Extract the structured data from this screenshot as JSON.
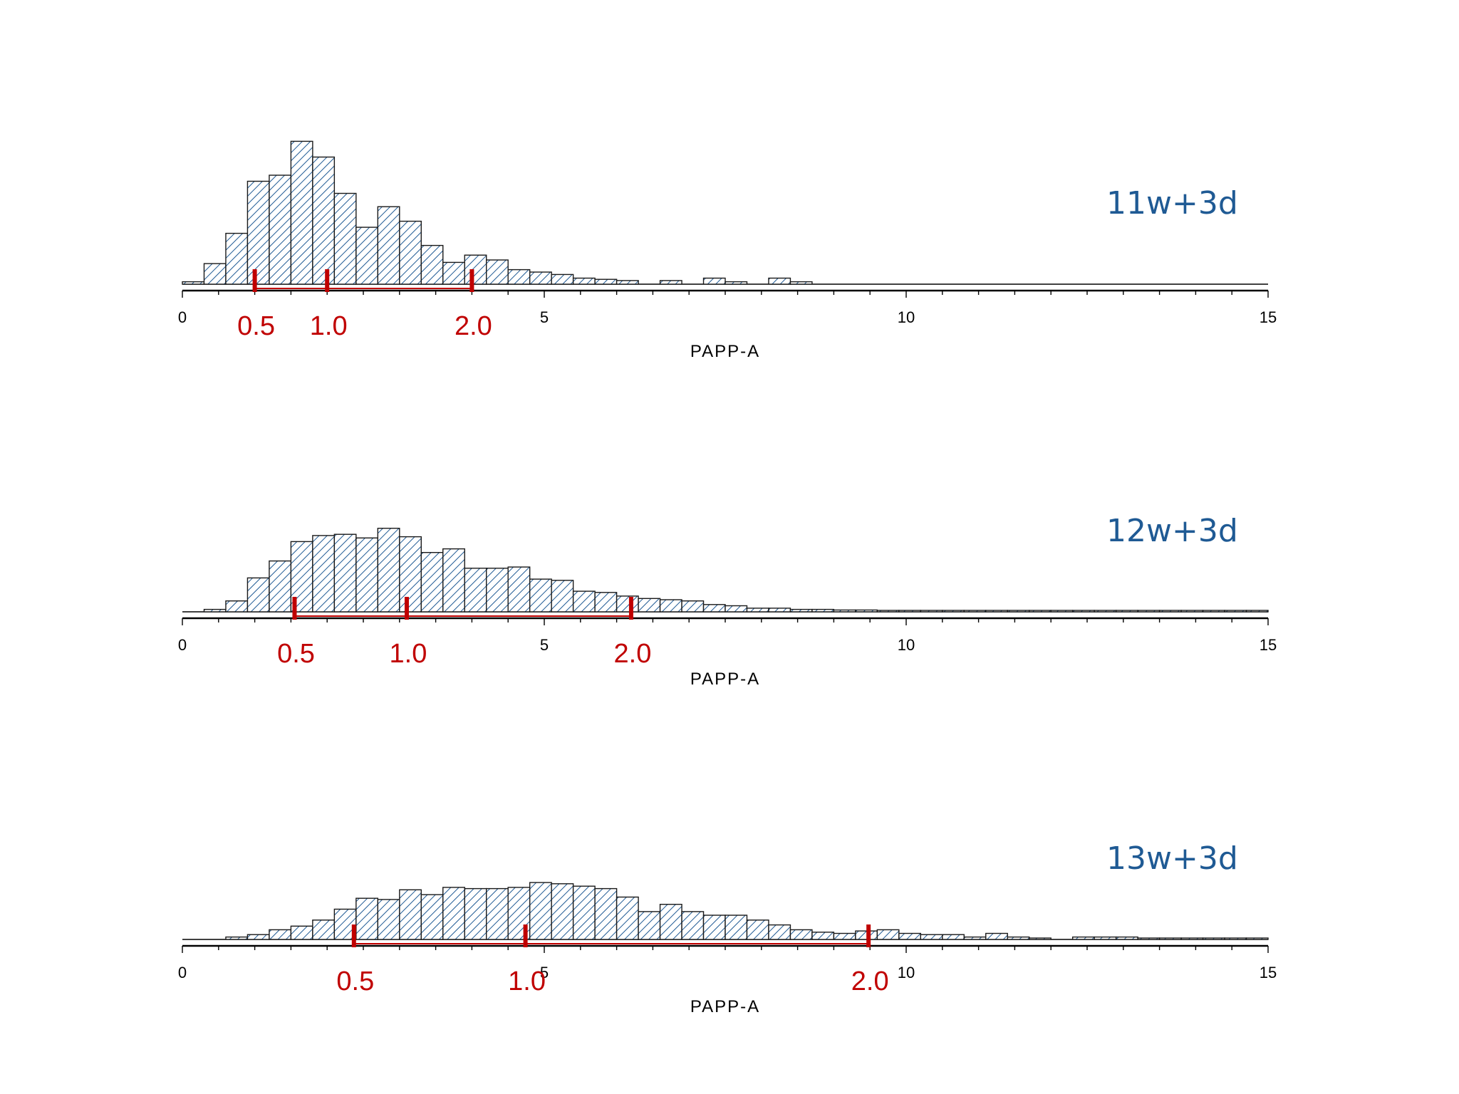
{
  "colors": {
    "bar_hatch": "#1f5a94",
    "marker": "#c00000",
    "panel_title": "#1f5a94",
    "axis": "#000000"
  },
  "chart_data": [
    {
      "type": "bar",
      "title": "11w+3d",
      "xlabel": "PAPP-A",
      "xlim": [
        0,
        15
      ],
      "x_ticks": [
        0,
        5,
        10,
        15
      ],
      "bin_width": 0.3,
      "bin_starts": [
        0,
        0.3,
        0.6,
        0.9,
        1.2,
        1.5,
        1.8,
        2.1,
        2.4,
        2.7,
        3.0,
        3.3,
        3.6,
        3.9,
        4.2,
        4.5,
        4.8,
        5.1,
        5.4,
        5.7,
        6.0,
        6.3,
        6.6,
        6.9,
        7.2,
        7.5,
        7.8,
        8.1,
        8.4
      ],
      "values": [
        2,
        17,
        42,
        85,
        90,
        118,
        105,
        75,
        47,
        64,
        52,
        32,
        18,
        24,
        20,
        12,
        10,
        8,
        5,
        4,
        3,
        0,
        3,
        0,
        5,
        2,
        0,
        5,
        2
      ],
      "markers": [
        {
          "x": 1.0,
          "label": "0.5"
        },
        {
          "x": 2.0,
          "label": "1.0"
        },
        {
          "x": 4.0,
          "label": "2.0"
        }
      ]
    },
    {
      "type": "bar",
      "title": "12w+3d",
      "xlabel": "PAPP-A",
      "xlim": [
        0,
        15
      ],
      "x_ticks": [
        0,
        5,
        10,
        15
      ],
      "bin_width": 0.3,
      "bin_starts": [
        0,
        0.3,
        0.6,
        0.9,
        1.2,
        1.5,
        1.8,
        2.1,
        2.4,
        2.7,
        3.0,
        3.3,
        3.6,
        3.9,
        4.2,
        4.5,
        4.8,
        5.1,
        5.4,
        5.7,
        6.0,
        6.3,
        6.6,
        6.9,
        7.2,
        7.5,
        7.8,
        8.1,
        8.4,
        8.7,
        9.0,
        9.3,
        9.6,
        9.9,
        10.2,
        10.5,
        10.8,
        11.1,
        11.4,
        11.7,
        12.0,
        12.3,
        12.6,
        12.9,
        13.2,
        13.5,
        13.8,
        14.1,
        14.4,
        14.7
      ],
      "values": [
        0,
        2,
        9,
        28,
        42,
        58,
        63,
        64,
        61,
        69,
        62,
        49,
        52,
        36,
        36,
        37,
        27,
        26,
        17,
        16,
        13,
        11,
        10,
        9,
        6,
        5,
        3,
        3,
        2,
        2,
        1.5,
        1.5,
        1,
        1,
        0.5,
        0.5,
        1,
        0.5,
        0.5,
        0.5,
        0.5,
        1,
        0.5,
        0.5,
        0.5,
        0.5,
        0.5,
        0.5,
        0.5,
        0.5
      ],
      "markers": [
        {
          "x": 1.55,
          "label": "0.5"
        },
        {
          "x": 3.1,
          "label": "1.0"
        },
        {
          "x": 6.2,
          "label": "2.0"
        }
      ]
    },
    {
      "type": "bar",
      "title": "13w+3d",
      "xlabel": "PAPP-A",
      "xlim": [
        0,
        15
      ],
      "x_ticks": [
        0,
        5,
        10,
        15
      ],
      "bin_width": 0.3,
      "bin_starts": [
        0,
        0.3,
        0.6,
        0.9,
        1.2,
        1.5,
        1.8,
        2.1,
        2.4,
        2.7,
        3.0,
        3.3,
        3.6,
        3.9,
        4.2,
        4.5,
        4.8,
        5.1,
        5.4,
        5.7,
        6.0,
        6.3,
        6.6,
        6.9,
        7.2,
        7.5,
        7.8,
        8.1,
        8.4,
        8.7,
        9.0,
        9.3,
        9.6,
        9.9,
        10.2,
        10.5,
        10.8,
        11.1,
        11.4,
        11.7,
        12.0,
        12.3,
        12.6,
        12.9,
        13.2,
        13.5,
        13.8,
        14.1,
        14.4,
        14.7
      ],
      "values": [
        0,
        0,
        2,
        4,
        8,
        11,
        16,
        25,
        34,
        33,
        41,
        37,
        43,
        42,
        42,
        43,
        47,
        46,
        44,
        42,
        35,
        23,
        29,
        23,
        20,
        20,
        16,
        12,
        8,
        6,
        5,
        7,
        8,
        5,
        4,
        4,
        2,
        5,
        2,
        1,
        0,
        2,
        2,
        2,
        1,
        0.5,
        0.5,
        0.5,
        1,
        0.5
      ],
      "markers": [
        {
          "x": 2.37,
          "label": "0.5"
        },
        {
          "x": 4.74,
          "label": "1.0"
        },
        {
          "x": 9.48,
          "label": "2.0"
        }
      ]
    }
  ]
}
